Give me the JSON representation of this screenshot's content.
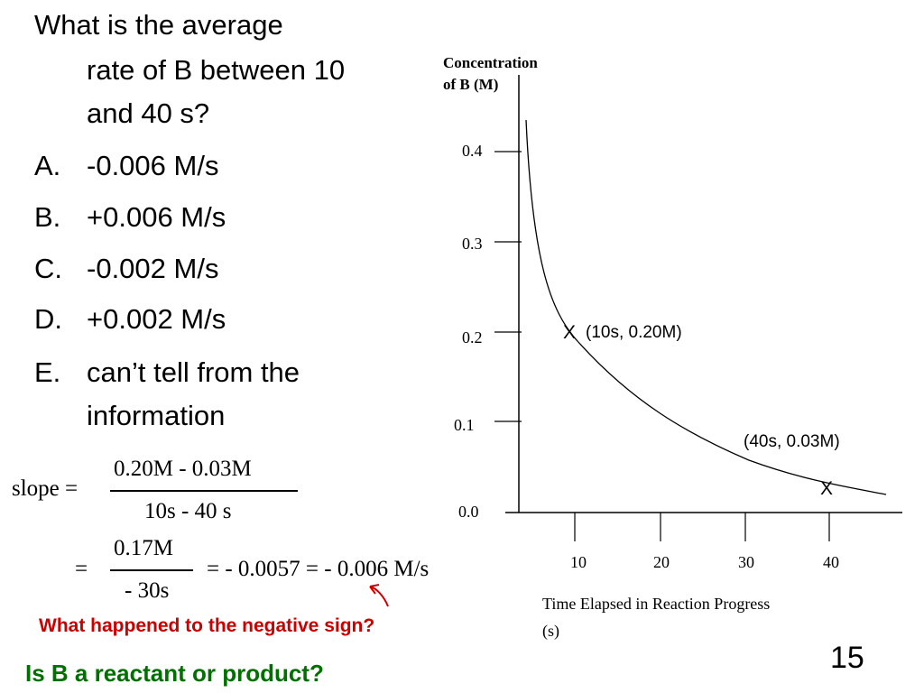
{
  "question": {
    "lines": [
      "What is the average",
      "rate of B between 10",
      "and 40 s?"
    ],
    "options": [
      {
        "letter": "A.",
        "text": "-0.006 M/s"
      },
      {
        "letter": "B.",
        "text": "+0.006 M/s"
      },
      {
        "letter": "C.",
        "text": "-0.002 M/s"
      },
      {
        "letter": "D.",
        "text": "+0.002 M/s"
      },
      {
        "letter": "E.",
        "text": "can’t tell from the",
        "text2": "information"
      }
    ]
  },
  "graph": {
    "y_axis_label_1": "Concentration",
    "y_axis_label_2": "of B (M)",
    "y_ticks": [
      "0.4",
      "0.3",
      "0.2",
      "0.1",
      "0.0"
    ],
    "x_ticks": [
      "10",
      "20",
      "30",
      "40"
    ],
    "x_axis_label_1": "Time Elapsed in Reaction Progress",
    "x_axis_label_2": "(s)",
    "point1_mark": "X",
    "point1_label": "(10s, 0.20M)",
    "point2_mark": "X",
    "point2_label": "(40s, 0.03M)"
  },
  "math": {
    "slope_label": "slope =",
    "num1": "0.20M - 0.03M",
    "den1": "10s - 40 s",
    "eq2": "=",
    "num2": "0.17M",
    "den2": "- 30s",
    "result": "= - 0.0057 = - 0.006 M/s"
  },
  "notes": {
    "negative_sign": "What happened to the negative sign?",
    "reactant_product": "Is B a reactant or product?"
  },
  "slide_number": "15",
  "colors": {
    "red": "#cc0000",
    "green": "#007000"
  }
}
